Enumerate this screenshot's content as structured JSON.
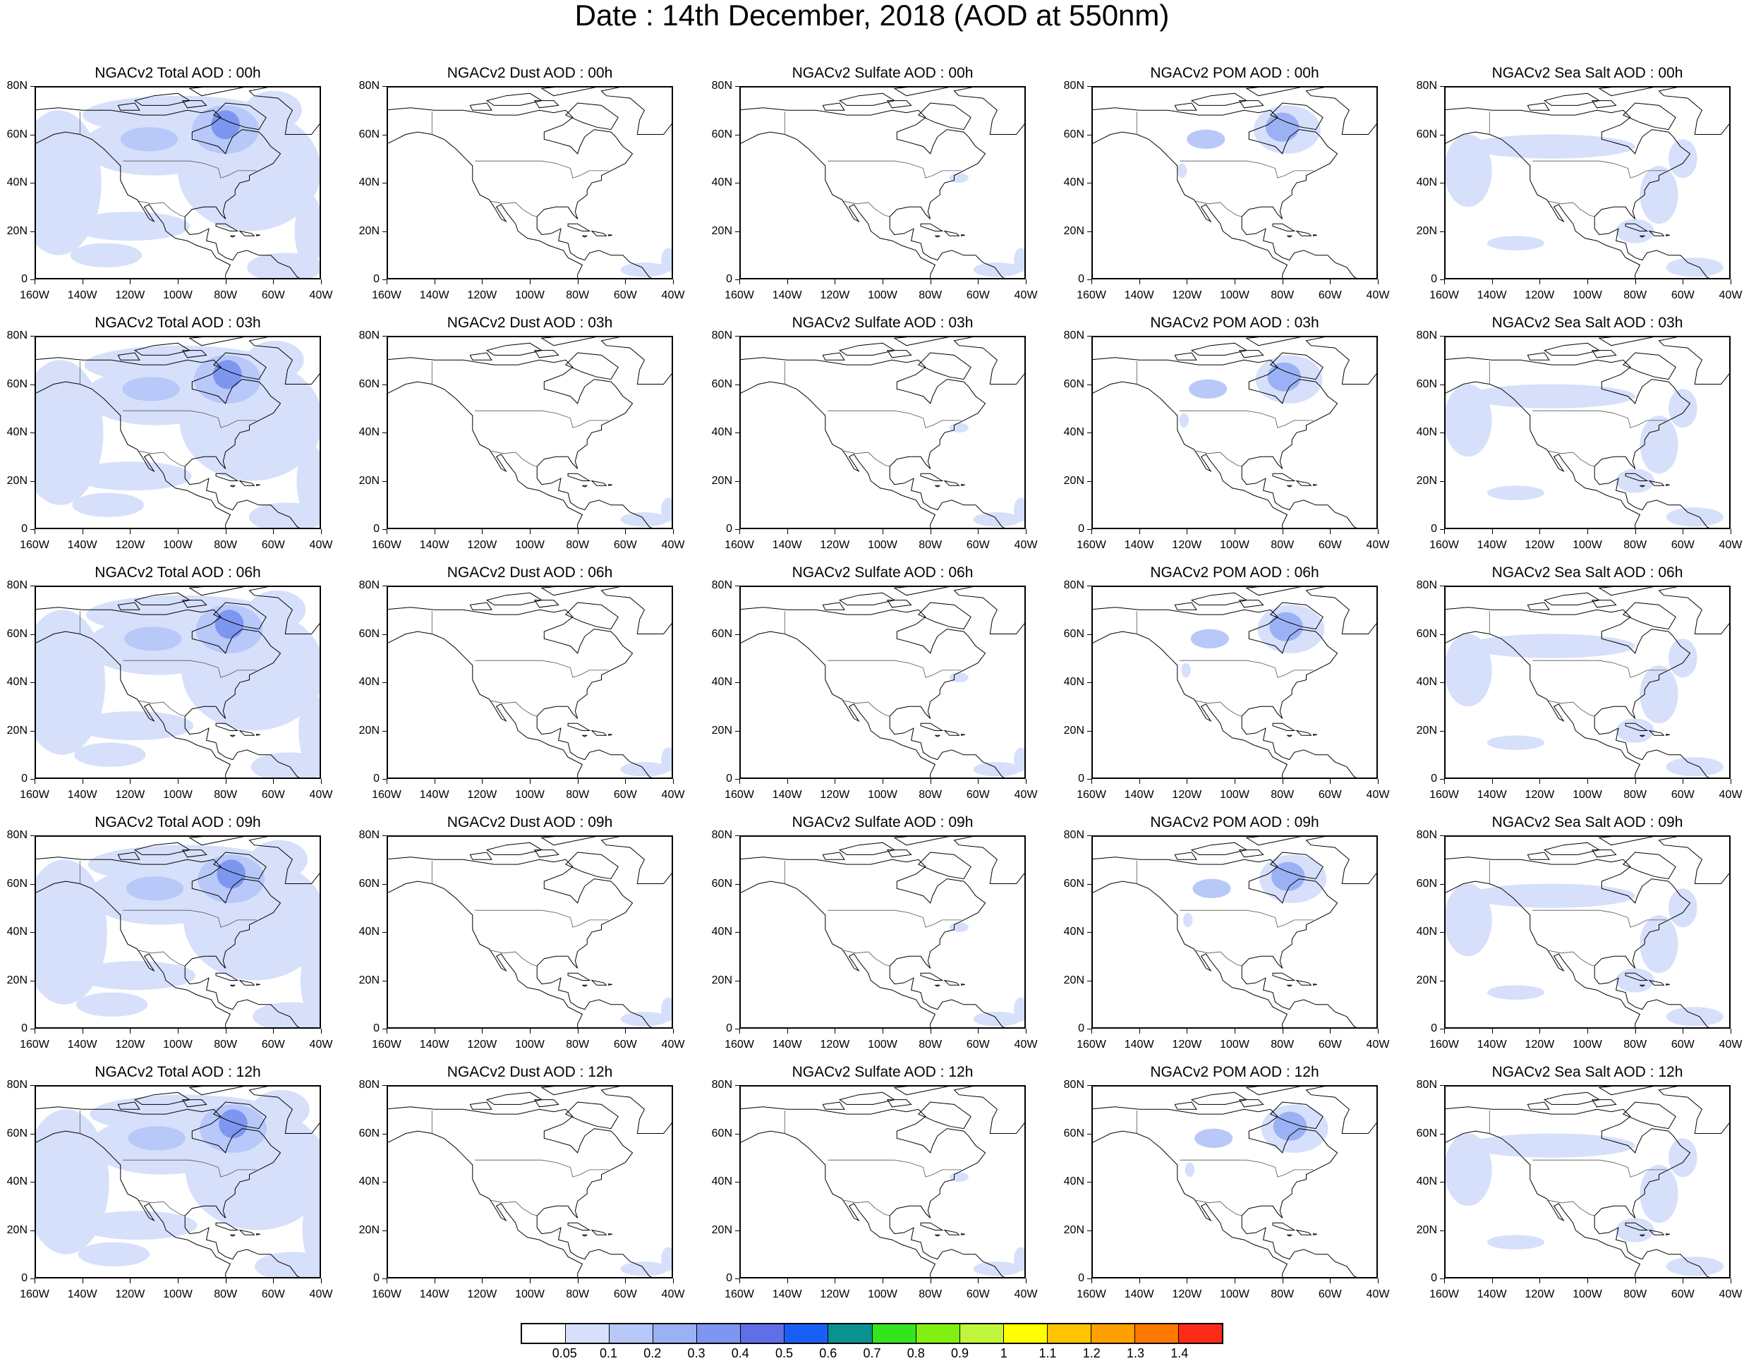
{
  "title": "Date : 14th December, 2018 (AOD at 550nm)",
  "panel_titles": [
    [
      "NGACv2 Total AOD : 00h",
      "NGACv2 Dust AOD : 00h",
      "NGACv2 Sulfate AOD : 00h",
      "NGACv2 POM AOD : 00h",
      "NGACv2 Sea Salt AOD : 00h"
    ],
    [
      "NGACv2 Total AOD : 03h",
      "NGACv2 Dust AOD : 03h",
      "NGACv2 Sulfate AOD : 03h",
      "NGACv2 POM AOD : 03h",
      "NGACv2 Sea Salt AOD : 03h"
    ],
    [
      "NGACv2 Total AOD : 06h",
      "NGACv2 Dust AOD : 06h",
      "NGACv2 Sulfate AOD : 06h",
      "NGACv2 POM AOD : 06h",
      "NGACv2 Sea Salt AOD : 06h"
    ],
    [
      "NGACv2 Total AOD : 09h",
      "NGACv2 Dust AOD : 09h",
      "NGACv2 Sulfate AOD : 09h",
      "NGACv2 POM AOD : 09h",
      "NGACv2 Sea Salt  AOD : 09h"
    ],
    [
      "NGACv2 Total AOD  : 12h",
      "NGACv2 Dust AOD : 12h",
      "NGACv2 Sulfate AOD : 12h",
      "NGACv2 POM  AOD : 12h",
      "NGACv2 Sea Salt  AOD : 12h"
    ]
  ],
  "lat_labels": [
    "80N",
    "60N",
    "40N",
    "20N",
    "0"
  ],
  "lon_labels": [
    "160W",
    "140W",
    "120W",
    "100W",
    "80W",
    "60W",
    "40W"
  ],
  "colorbar": {
    "labels": [
      "0.05",
      "0.1",
      "0.2",
      "0.3",
      "0.4",
      "0.5",
      "0.6",
      "0.7",
      "0.8",
      "0.9",
      "1",
      "1.1",
      "1.2",
      "1.3",
      "1.4"
    ],
    "colors": [
      "#ffffff",
      "#d6e0fb",
      "#b8c8f8",
      "#9bb1f5",
      "#7d96f0",
      "#5f6fe8",
      "#1a5ff5",
      "#09928f",
      "#34e51d",
      "#7ff00f",
      "#bff53a",
      "#ffff00",
      "#ffc400",
      "#ff9f00",
      "#ff7800",
      "#ff2a17"
    ]
  },
  "map_extent": {
    "lon_min": -160,
    "lon_max": -40,
    "lat_min": 0,
    "lat_max": 80
  },
  "coastline_color": "#000000"
}
